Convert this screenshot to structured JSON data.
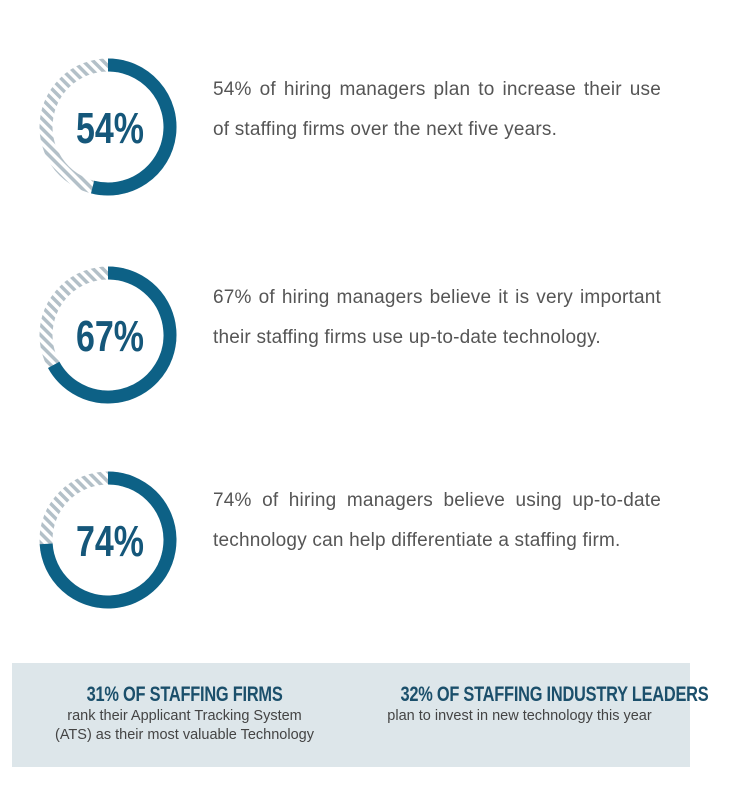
{
  "stats": [
    {
      "value": 54,
      "label": "54%",
      "text": "54% of hiring managers plan to increase their use of staffing firms over the next five years."
    },
    {
      "value": 67,
      "label": "67%",
      "text": "67% of hiring managers believe it is very important their staffing firms use up-to-date technology."
    },
    {
      "value": 74,
      "label": "74%",
      "text": "74% of hiring managers believe using up-to-date technology can help differentiate a staffing firm."
    }
  ],
  "footer": [
    {
      "title": "31% OF STAFFING FIRMS",
      "text": "rank their Applicant Tracking System (ATS) as their most valuable Technology"
    },
    {
      "title": "32% OF STAFFING INDUSTRY LEADERS",
      "text": "plan to invest in new technology this year"
    }
  ]
}
